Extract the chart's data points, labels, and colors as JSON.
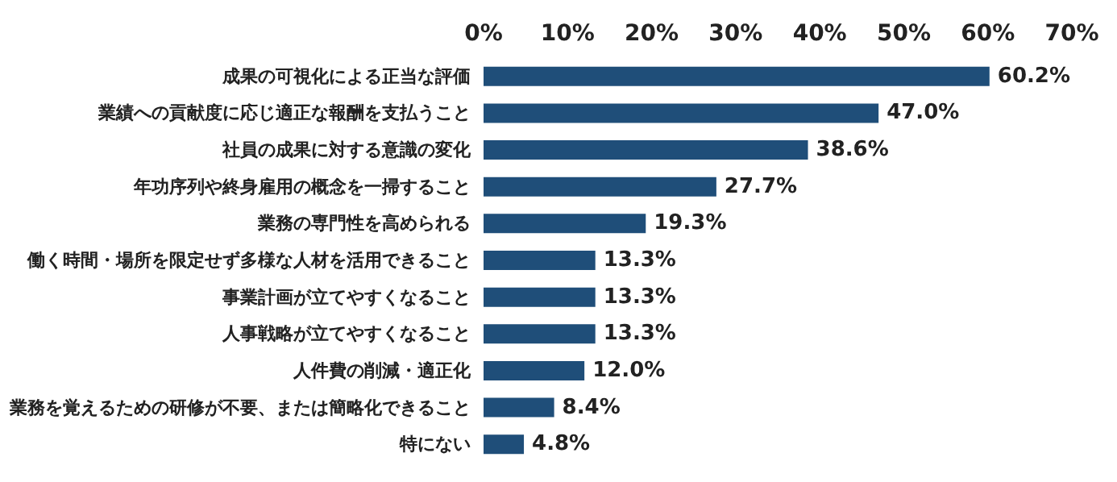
{
  "chart_data": {
    "type": "bar",
    "orientation": "horizontal",
    "categories": [
      "成果の可視化による正当な評価",
      "業績への貢献度に応じ適正な報酬を支払うこと",
      "社員の成果に対する意識の変化",
      "年功序列や終身雇用の概念を一掃すること",
      "業務の専門性を高められる",
      "働く時間・場所を限定せず多様な人材を活用できること",
      "事業計画が立てやすくなること",
      "人事戦略が立てやすくなること",
      "人件費の削減・適正化",
      "業務を覚えるための研修が不要、または簡略化できること",
      "特にない"
    ],
    "values": [
      60.2,
      47.0,
      38.6,
      27.7,
      19.3,
      13.3,
      13.3,
      13.3,
      12.0,
      8.4,
      4.8
    ],
    "value_labels": [
      "60.2%",
      "47.0%",
      "38.6%",
      "27.7%",
      "19.3%",
      "13.3%",
      "13.3%",
      "13.3%",
      "12.0%",
      "8.4%",
      "4.8%"
    ],
    "color": "#1f4e79",
    "xlim": [
      0,
      70
    ],
    "xticks": [
      {
        "value": 0,
        "label": "0%"
      },
      {
        "value": 10,
        "label": "10%"
      },
      {
        "value": 20,
        "label": "20%"
      },
      {
        "value": 30,
        "label": "30%"
      },
      {
        "value": 40,
        "label": "40%"
      },
      {
        "value": 50,
        "label": "50%"
      },
      {
        "value": 60,
        "label": "60%"
      },
      {
        "value": 70,
        "label": "70%"
      }
    ],
    "grid": false
  }
}
